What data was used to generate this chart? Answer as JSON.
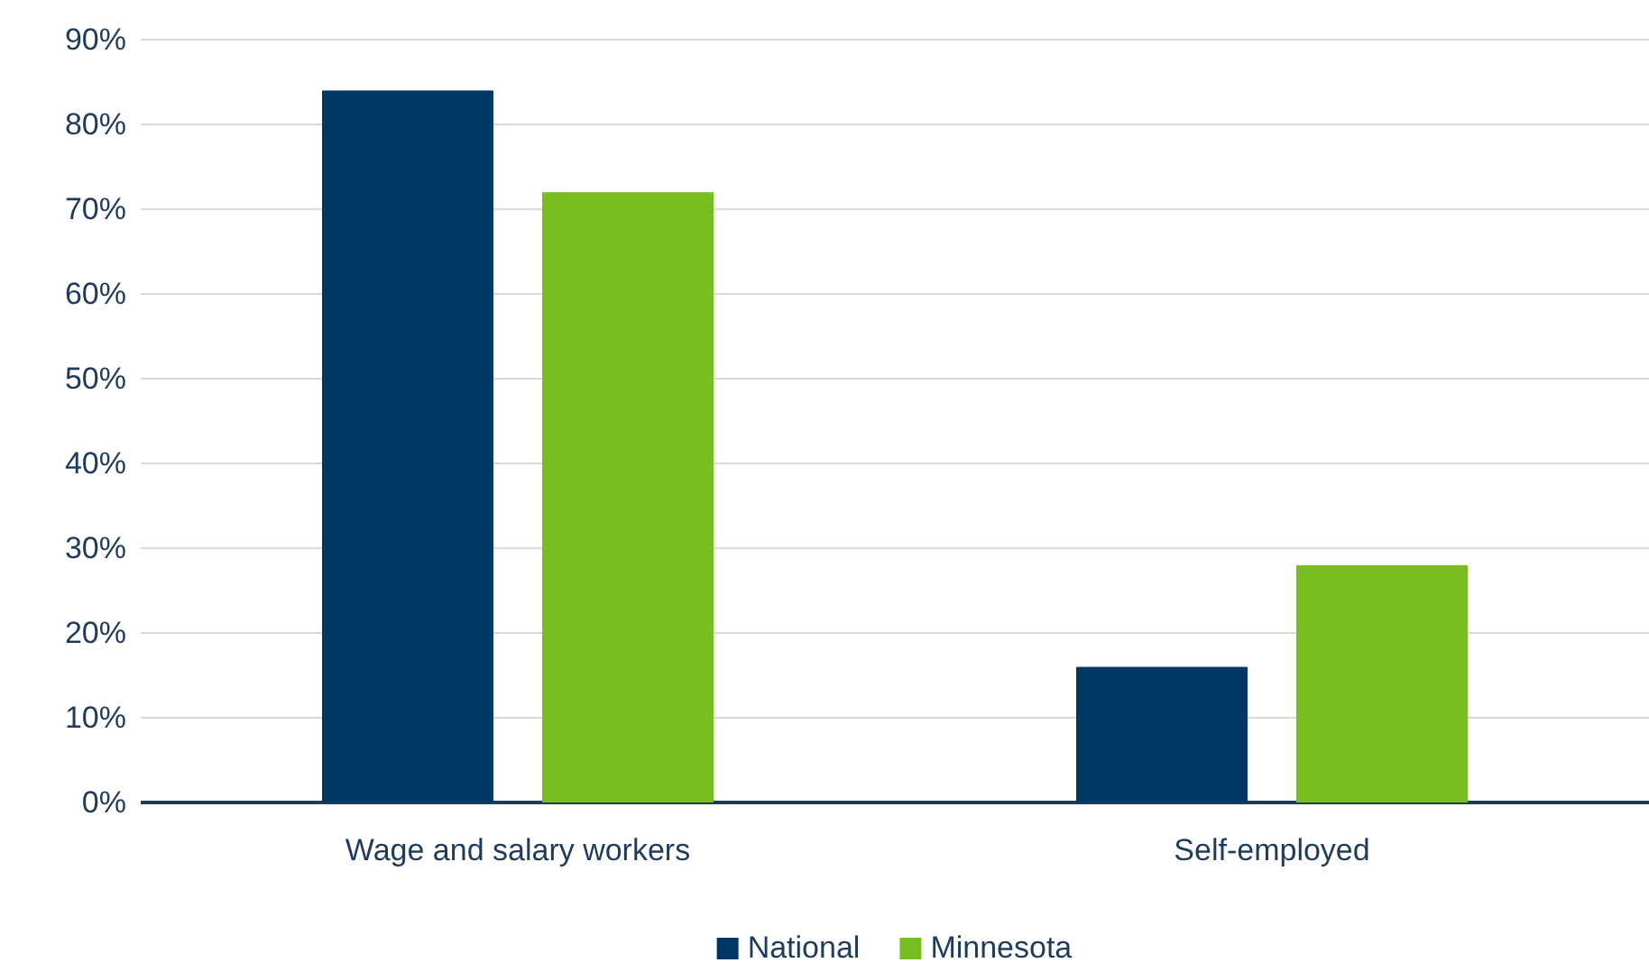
{
  "chart_data": {
    "type": "bar",
    "categories": [
      "Wage and salary workers",
      "Self-employed"
    ],
    "series": [
      {
        "name": "National",
        "color": "#003865",
        "values": [
          84,
          16
        ]
      },
      {
        "name": "Minnesota",
        "color": "#78be21",
        "values": [
          72,
          28
        ]
      }
    ],
    "ylim": [
      0,
      90
    ],
    "yticks": [
      {
        "value": 0,
        "label": "0%"
      },
      {
        "value": 10,
        "label": "10%"
      },
      {
        "value": 20,
        "label": "20%"
      },
      {
        "value": 30,
        "label": "30%"
      },
      {
        "value": 40,
        "label": "40%"
      },
      {
        "value": 50,
        "label": "50%"
      },
      {
        "value": 60,
        "label": "60%"
      },
      {
        "value": 70,
        "label": "70%"
      },
      {
        "value": 80,
        "label": "80%"
      },
      {
        "value": 90,
        "label": "90%"
      }
    ],
    "grid": "y",
    "legend": "bottom"
  }
}
